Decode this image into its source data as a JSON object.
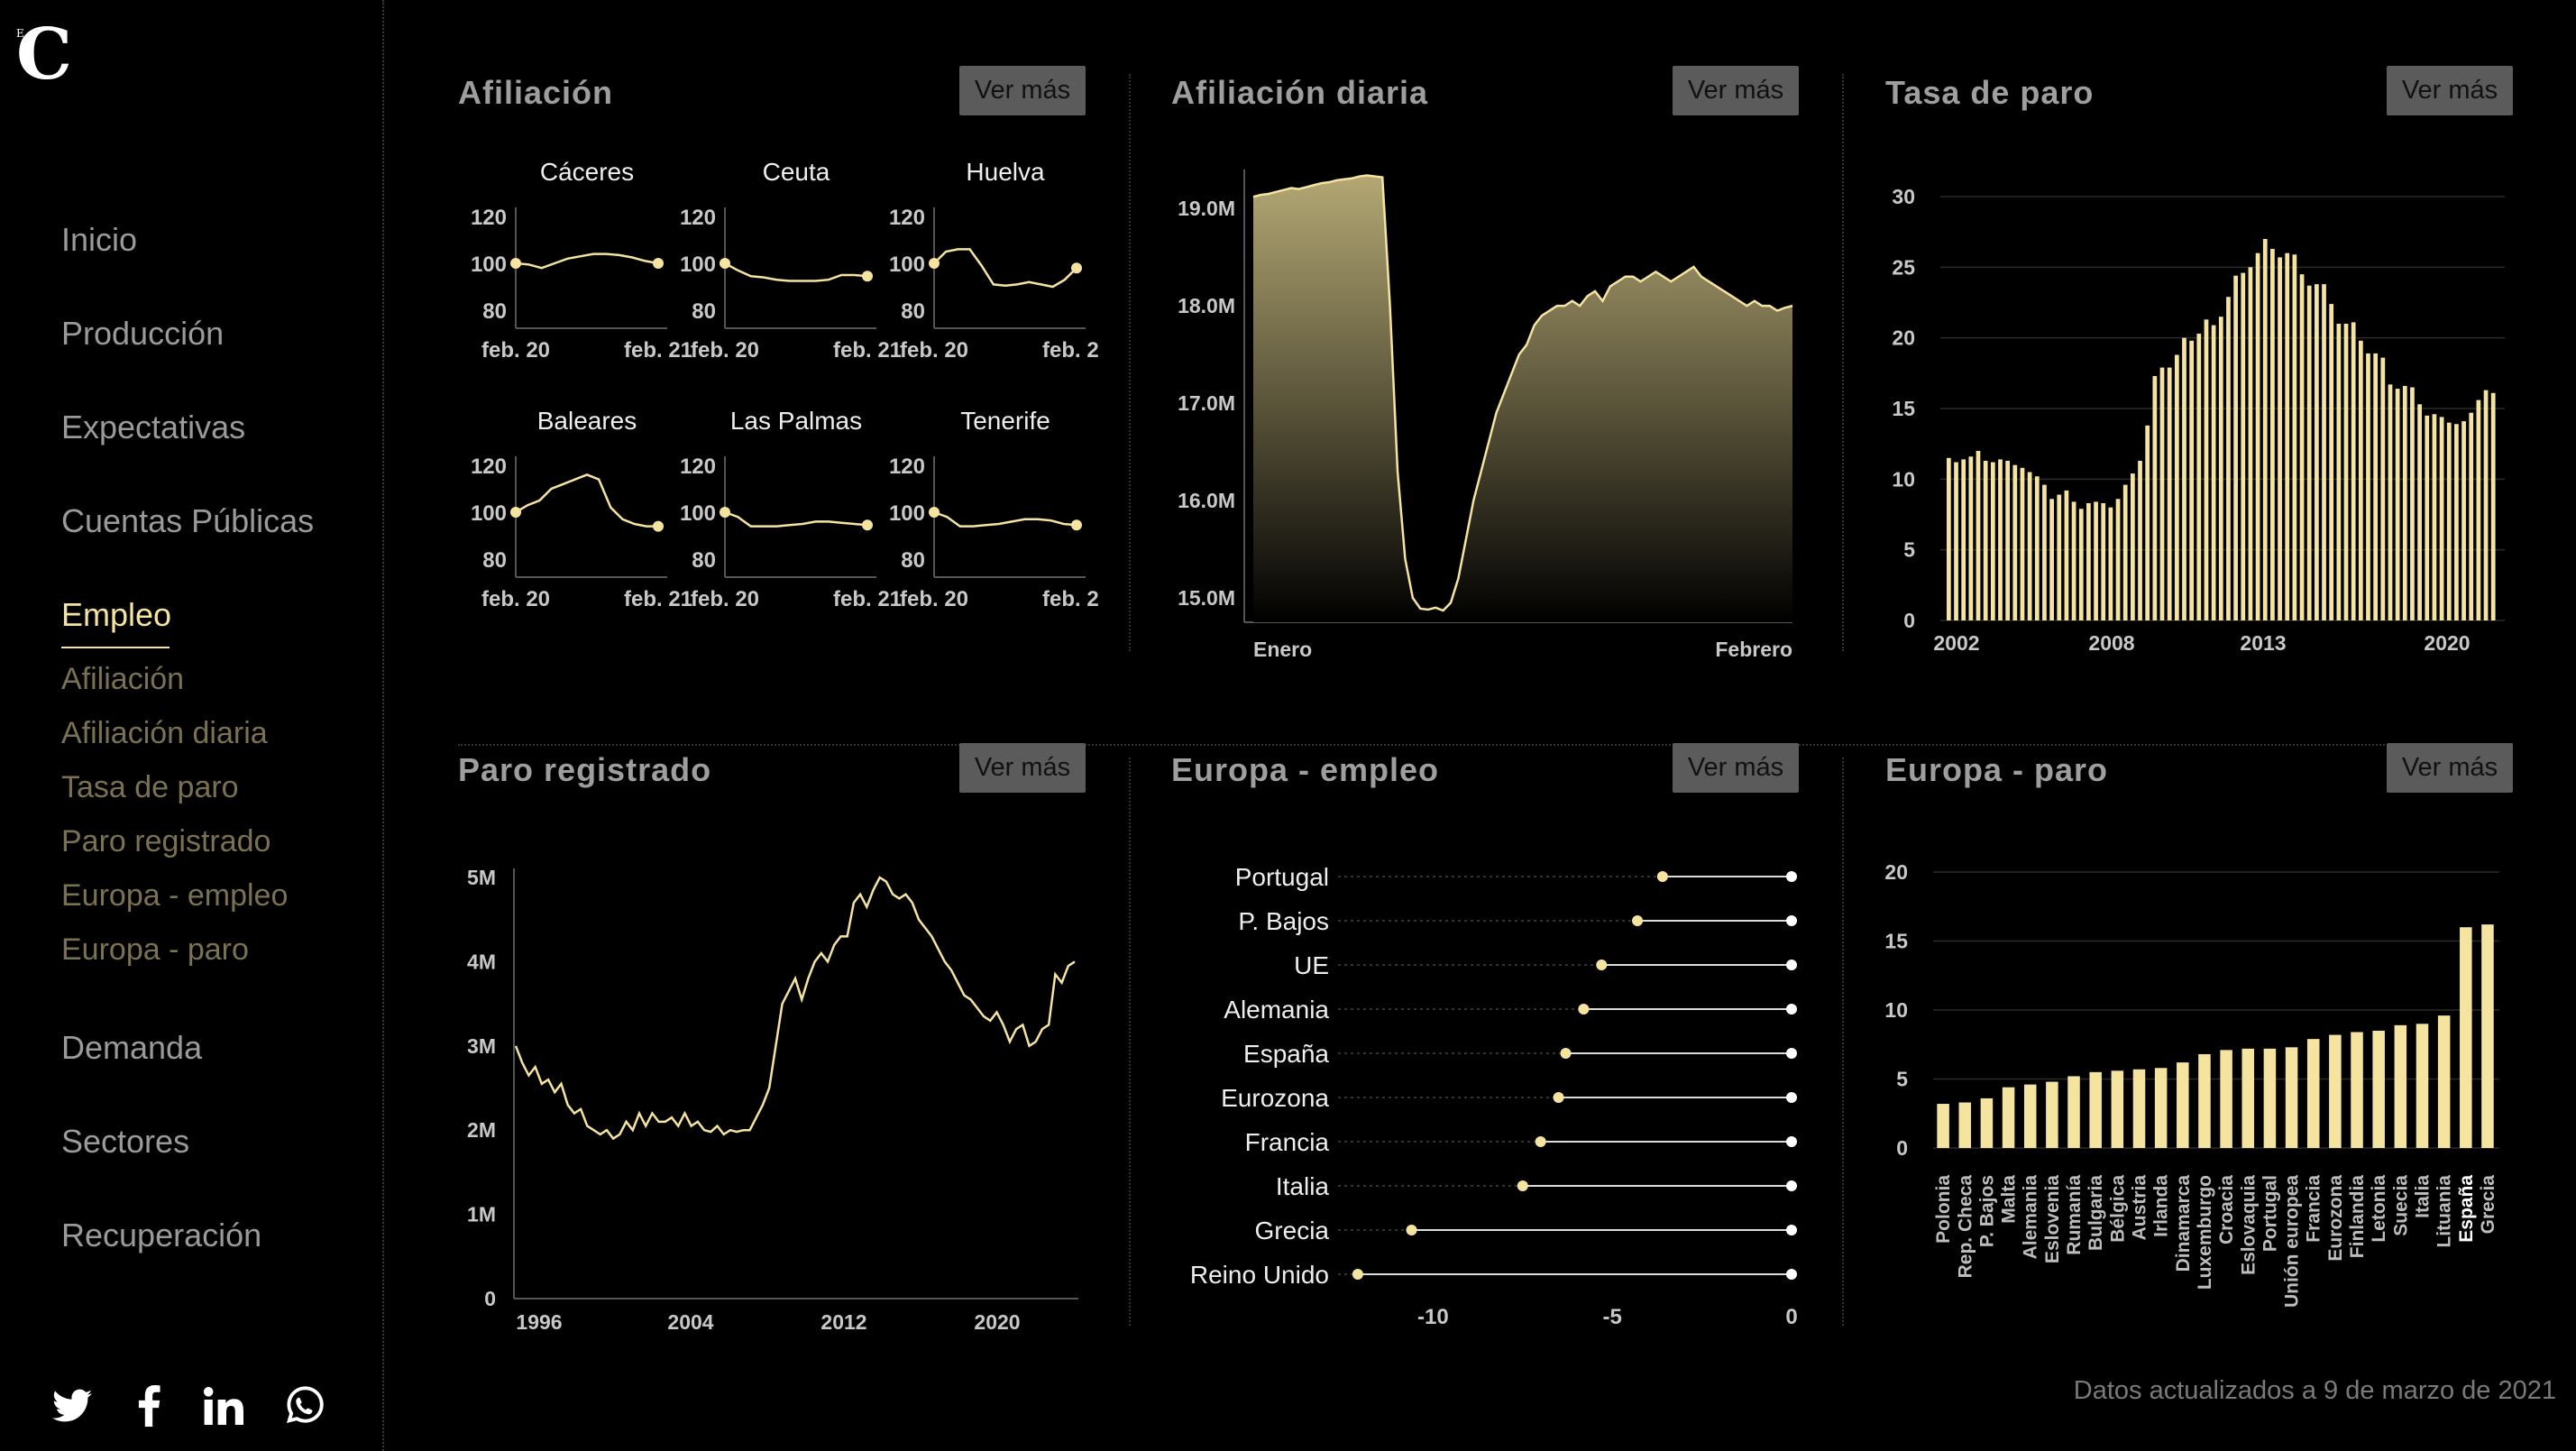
{
  "brand": {
    "logo": "C",
    "logo_small": "E"
  },
  "nav": {
    "items": [
      {
        "label": "Inicio"
      },
      {
        "label": "Producción"
      },
      {
        "label": "Expectativas"
      },
      {
        "label": "Cuentas Públicas"
      },
      {
        "label": "Empleo"
      },
      {
        "label": "Demanda"
      },
      {
        "label": "Sectores"
      },
      {
        "label": "Recuperación"
      }
    ],
    "active": "Empleo",
    "subitems": [
      {
        "label": "Afiliación"
      },
      {
        "label": "Afiliación diaria"
      },
      {
        "label": "Tasa de paro"
      },
      {
        "label": "Paro registrado"
      },
      {
        "label": "Europa - empleo"
      },
      {
        "label": "Europa - paro"
      }
    ]
  },
  "social": [
    "twitter-icon",
    "facebook-icon",
    "linkedin-icon",
    "whatsapp-icon"
  ],
  "colors": {
    "accent": "#f5e3a0",
    "bar": "#f5e3a0",
    "button_bg": "#5b5b5b",
    "muted_nav": "#7a7152"
  },
  "button_label": "Ver más",
  "panels": {
    "afiliacion": {
      "title": "Afiliación"
    },
    "afiliacion_diaria": {
      "title": "Afiliación diaria"
    },
    "tasa_paro": {
      "title": "Tasa de paro"
    },
    "paro_registrado": {
      "title": "Paro registrado"
    },
    "europa_empleo": {
      "title": "Europa - empleo"
    },
    "europa_paro": {
      "title": "Europa - paro"
    }
  },
  "footer": "Datos actualizados a 9 de marzo de 2021",
  "chart_data": [
    {
      "id": "afiliacion",
      "type": "line",
      "ylim": [
        80,
        120
      ],
      "yticks": [
        80,
        100,
        120
      ],
      "x_tick_labels": [
        "feb. 20",
        "feb. 21"
      ],
      "panels": [
        {
          "name": "Cáceres",
          "values": [
            100,
            99.5,
            98,
            100,
            102,
            103,
            104,
            104,
            103.5,
            102.5,
            101,
            100
          ]
        },
        {
          "name": "Ceuta",
          "values": [
            100,
            97,
            94.5,
            94,
            93,
            92.5,
            92.5,
            92.5,
            93,
            95,
            95,
            94.5
          ]
        },
        {
          "name": "Huelva",
          "values": [
            100,
            105,
            106,
            106,
            99,
            91,
            90.5,
            91,
            92,
            91,
            90,
            93,
            98
          ]
        },
        {
          "name": "Baleares",
          "values": [
            100,
            103,
            105,
            110,
            112,
            114,
            116,
            114,
            102,
            97,
            95,
            94,
            94
          ]
        },
        {
          "name": "Las Palmas",
          "values": [
            100,
            98,
            94,
            94,
            94,
            94.5,
            95,
            96,
            96,
            95.5,
            95,
            94.5
          ]
        },
        {
          "name": "Tenerife",
          "values": [
            100,
            98,
            94,
            94,
            94.5,
            95,
            96,
            97,
            97,
            96.5,
            95,
            94.5
          ]
        }
      ]
    },
    {
      "id": "afiliacion_diaria",
      "type": "area",
      "x_tick_labels": [
        "Enero",
        "Febrero"
      ],
      "yticks": [
        "15.0M",
        "16.0M",
        "17.0M",
        "18.0M",
        "19.0M"
      ],
      "ylim": [
        14.75,
        19.4
      ],
      "values": [
        19.12,
        19.14,
        19.15,
        19.17,
        19.19,
        19.21,
        19.2,
        19.22,
        19.24,
        19.26,
        19.27,
        19.29,
        19.3,
        19.31,
        19.33,
        19.34,
        19.33,
        19.32,
        18.0,
        16.3,
        15.4,
        15.0,
        14.89,
        14.88,
        14.9,
        14.87,
        14.95,
        15.2,
        15.6,
        16.0,
        16.3,
        16.6,
        16.9,
        17.1,
        17.3,
        17.5,
        17.6,
        17.8,
        17.9,
        17.95,
        18.0,
        18.0,
        18.05,
        18.0,
        18.1,
        18.15,
        18.05,
        18.2,
        18.25,
        18.3,
        18.3,
        18.25,
        18.3,
        18.35,
        18.3,
        18.25,
        18.3,
        18.35,
        18.4,
        18.3,
        18.25,
        18.2,
        18.15,
        18.1,
        18.05,
        18.0,
        18.05,
        18.0,
        18.0,
        17.95,
        17.98,
        18.0
      ]
    },
    {
      "id": "tasa_paro",
      "type": "bar",
      "x_tick_labels": [
        "2002",
        "2008",
        "2013",
        "2020"
      ],
      "yticks": [
        0,
        5,
        10,
        15,
        20,
        25,
        30
      ],
      "ylim": [
        0,
        30
      ],
      "values": [
        11.5,
        11.2,
        11.4,
        11.6,
        12.0,
        11.3,
        11.2,
        11.4,
        11.3,
        11.0,
        10.8,
        10.5,
        10.2,
        9.6,
        8.6,
        8.9,
        9.2,
        8.4,
        7.9,
        8.3,
        8.4,
        8.3,
        8.0,
        8.6,
        9.6,
        10.4,
        11.3,
        13.8,
        17.3,
        17.9,
        17.9,
        18.8,
        20.0,
        19.8,
        20.3,
        21.3,
        20.9,
        21.5,
        22.9,
        24.4,
        24.6,
        25.0,
        26.0,
        27.0,
        26.3,
        25.7,
        26.0,
        25.9,
        24.5,
        23.7,
        23.8,
        23.8,
        22.4,
        21.0,
        21.0,
        21.1,
        19.8,
        18.9,
        18.9,
        18.6,
        16.7,
        16.4,
        16.6,
        16.5,
        15.3,
        14.5,
        14.6,
        14.4,
        14.0,
        13.9,
        14.1,
        14.7,
        15.6,
        16.3,
        16.1
      ]
    },
    {
      "id": "paro_registrado",
      "type": "line",
      "x_tick_labels": [
        "1996",
        "2004",
        "2012",
        "2020"
      ],
      "yticks": [
        "0",
        "1M",
        "2M",
        "3M",
        "4M",
        "5M"
      ],
      "ylim": [
        0,
        5
      ],
      "values": [
        3.0,
        2.8,
        2.65,
        2.75,
        2.55,
        2.6,
        2.45,
        2.55,
        2.3,
        2.2,
        2.25,
        2.05,
        2.0,
        1.95,
        2.0,
        1.9,
        1.95,
        2.1,
        2.0,
        2.2,
        2.05,
        2.2,
        2.1,
        2.1,
        2.15,
        2.05,
        2.2,
        2.05,
        2.1,
        2.0,
        1.98,
        2.05,
        1.95,
        2.0,
        1.98,
        2.0,
        2.0,
        2.15,
        2.3,
        2.5,
        3.0,
        3.5,
        3.65,
        3.8,
        3.55,
        3.8,
        4.0,
        4.1,
        4.0,
        4.2,
        4.3,
        4.3,
        4.7,
        4.8,
        4.65,
        4.85,
        5.0,
        4.95,
        4.8,
        4.75,
        4.8,
        4.7,
        4.5,
        4.4,
        4.3,
        4.15,
        4.0,
        3.9,
        3.75,
        3.6,
        3.55,
        3.45,
        3.35,
        3.3,
        3.4,
        3.25,
        3.05,
        3.2,
        3.25,
        3.0,
        3.05,
        3.2,
        3.25,
        3.85,
        3.75,
        3.95,
        4.0
      ]
    },
    {
      "id": "europa_empleo",
      "type": "dot",
      "x_tick_labels": [
        "-10",
        "-5",
        "0"
      ],
      "xlim": [
        -12.5,
        0
      ],
      "categories": [
        "Portugal",
        "P. Bajos",
        "UE",
        "Alemania",
        "España",
        "Eurozona",
        "Francia",
        "Italia",
        "Grecia",
        "Reino Unido"
      ],
      "values": [
        -3.6,
        -4.3,
        -5.3,
        -5.8,
        -6.3,
        -6.5,
        -7.0,
        -7.5,
        -10.6,
        -12.1
      ]
    },
    {
      "id": "europa_paro",
      "type": "bar",
      "yticks": [
        0,
        5,
        10,
        15,
        20
      ],
      "ylim": [
        0,
        20
      ],
      "highlight": "España",
      "categories": [
        "Polonia",
        "Rep. Checa",
        "P. Bajos",
        "Malta",
        "Alemania",
        "Eslovenia",
        "Rumanía",
        "Bulgaria",
        "Bélgica",
        "Austria",
        "Irlanda",
        "Dinamarca",
        "Luxemburgo",
        "Croacia",
        "Eslovaquia",
        "Portugal",
        "Unión europea",
        "Francia",
        "Eurozona",
        "Finlandia",
        "Letonia",
        "Suecia",
        "Italia",
        "Lituania",
        "España",
        "Grecia"
      ],
      "values": [
        3.2,
        3.3,
        3.6,
        4.4,
        4.6,
        4.8,
        5.2,
        5.5,
        5.6,
        5.7,
        5.8,
        6.2,
        6.8,
        7.1,
        7.2,
        7.2,
        7.3,
        7.9,
        8.2,
        8.4,
        8.5,
        8.9,
        9.0,
        9.6,
        16.0,
        16.2
      ]
    }
  ]
}
